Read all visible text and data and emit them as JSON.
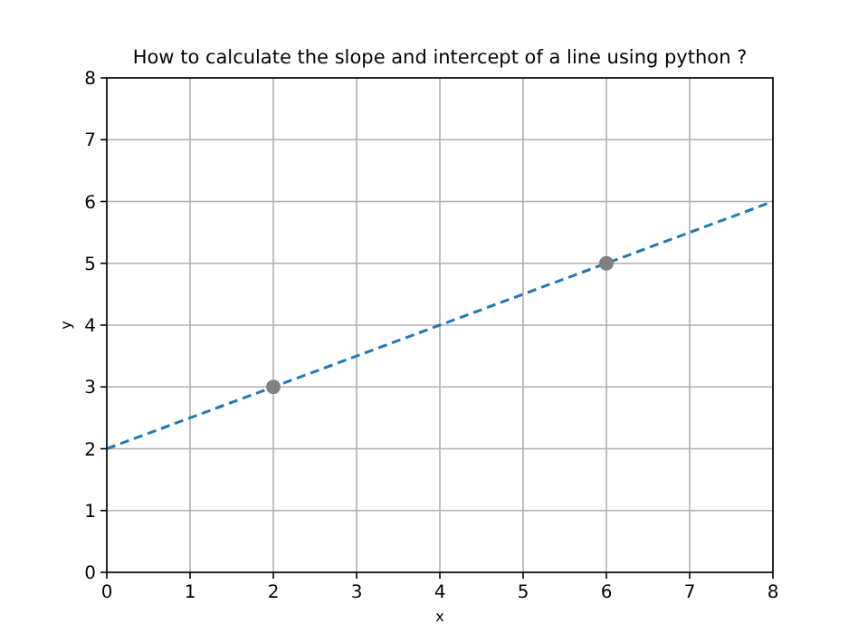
{
  "chart_data": {
    "type": "line",
    "title": "How to calculate the slope and intercept of a line using python ?",
    "xlabel": "x",
    "ylabel": "y",
    "xlim": [
      0,
      8
    ],
    "ylim": [
      0,
      8
    ],
    "xticks": [
      0,
      1,
      2,
      3,
      4,
      5,
      6,
      7,
      8
    ],
    "yticks": [
      0,
      1,
      2,
      3,
      4,
      5,
      6,
      7,
      8
    ],
    "grid": true,
    "series": [
      {
        "x": [
          0,
          8
        ],
        "values": [
          2,
          6
        ],
        "color": "#1f77b4",
        "line_style": "dashed",
        "marker": "none"
      },
      {
        "type": "scatter",
        "x": [
          2,
          6
        ],
        "values": [
          3,
          5
        ],
        "color": "#808080",
        "marker": "circle"
      }
    ]
  }
}
